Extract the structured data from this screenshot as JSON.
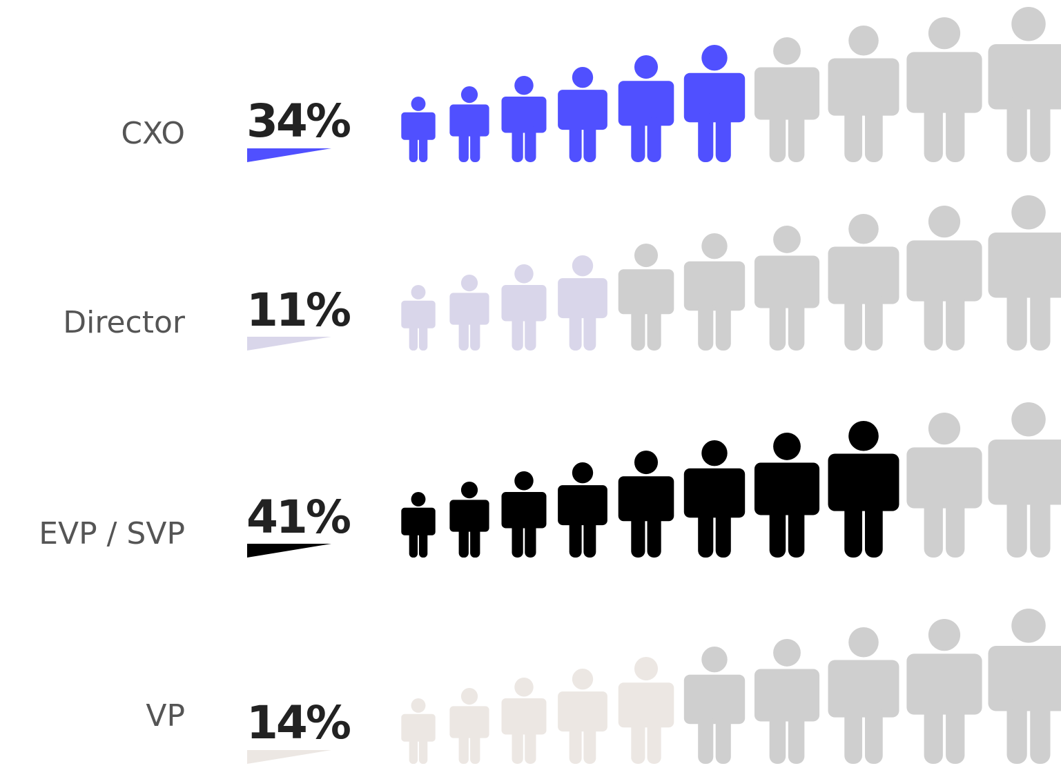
{
  "chart_data": {
    "type": "pictogram",
    "icons_per_row": 10,
    "inactive_color": "#cfcfcf",
    "rows": [
      {
        "label": "CXO",
        "percent_label": "34%",
        "value": 34,
        "filled_icons": 6,
        "color": "#5050ff"
      },
      {
        "label": "Director",
        "percent_label": "11%",
        "value": 11,
        "filled_icons": 4,
        "color": "#d9d6ea"
      },
      {
        "label": "EVP / SVP",
        "percent_label": "41%",
        "value": 41,
        "filled_icons": 8,
        "color": "#000000"
      },
      {
        "label": "VP",
        "percent_label": "14%",
        "value": 14,
        "filled_icons": 5,
        "color": "#ece7e3"
      }
    ]
  }
}
